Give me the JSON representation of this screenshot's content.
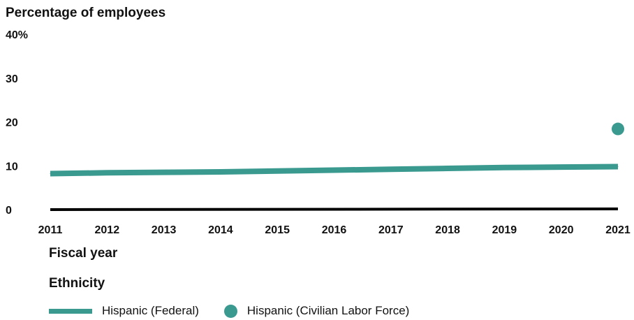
{
  "chart_data": {
    "type": "line",
    "ylabel": "Percentage of employees",
    "xlabel": "Fiscal year",
    "ylim": [
      0,
      40
    ],
    "y_ticks": [
      "0",
      "10",
      "20",
      "30",
      "40%"
    ],
    "categories": [
      "2011",
      "2012",
      "2013",
      "2014",
      "2015",
      "2016",
      "2017",
      "2018",
      "2019",
      "2020",
      "2021"
    ],
    "series": [
      {
        "name": "Hispanic (Federal)",
        "type": "line",
        "color": "#3a9a90",
        "values": [
          8.2,
          8.4,
          8.5,
          8.6,
          8.8,
          9.0,
          9.2,
          9.4,
          9.6,
          9.7,
          9.8
        ]
      },
      {
        "name": "Hispanic (Civilian Labor Force)",
        "type": "point",
        "color": "#3a9a90",
        "points": [
          {
            "x": "2021",
            "y": 18.4
          }
        ]
      }
    ],
    "legend_title": "Ethnicity",
    "legend_position": "bottom-left",
    "grid": false
  }
}
